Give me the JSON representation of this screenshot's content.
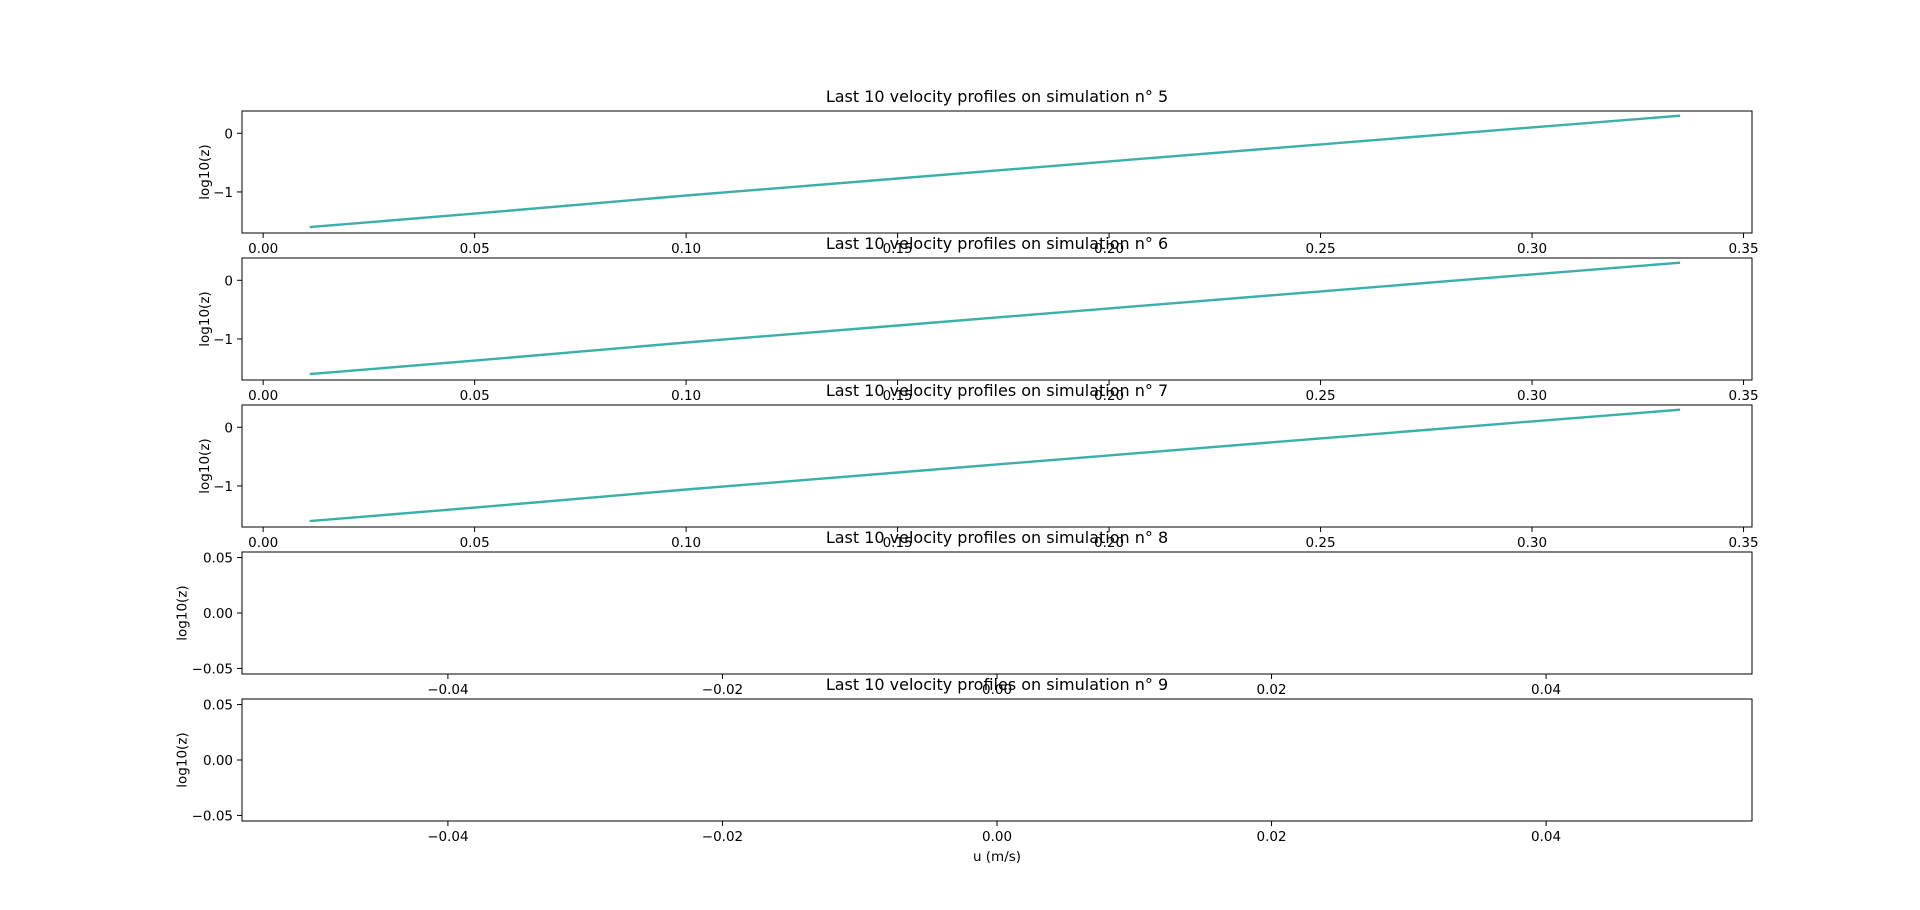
{
  "chart_data": [
    {
      "type": "line",
      "title": "Last 10 velocity profiles on simulation n° 5",
      "xlabel": "",
      "ylabel": "log10(z)",
      "xlim": [
        -0.005,
        0.352
      ],
      "ylim": [
        -1.7,
        0.38
      ],
      "xticks": [
        0.0,
        0.05,
        0.1,
        0.15,
        0.2,
        0.25,
        0.3,
        0.35
      ],
      "xtick_labels": [
        "0.00",
        "0.05",
        "0.10",
        "0.15",
        "0.20",
        "0.25",
        "0.30",
        "0.35"
      ],
      "yticks": [
        0,
        -1
      ],
      "ytick_labels": [
        "0",
        "−1"
      ],
      "color": "#3bb0a8",
      "series": [
        {
          "x": [
            0.011,
            0.05,
            0.1,
            0.15,
            0.2,
            0.25,
            0.3,
            0.335
          ],
          "y": [
            -1.6,
            -1.37,
            -1.06,
            -0.77,
            -0.48,
            -0.19,
            0.1,
            0.3
          ]
        }
      ]
    },
    {
      "type": "line",
      "title": "Last 10 velocity profiles on simulation n° 6",
      "xlabel": "",
      "ylabel": "log10(z)",
      "xlim": [
        -0.005,
        0.352
      ],
      "ylim": [
        -1.7,
        0.38
      ],
      "xticks": [
        0.0,
        0.05,
        0.1,
        0.15,
        0.2,
        0.25,
        0.3,
        0.35
      ],
      "xtick_labels": [
        "0.00",
        "0.05",
        "0.10",
        "0.15",
        "0.20",
        "0.25",
        "0.30",
        "0.35"
      ],
      "yticks": [
        0,
        -1
      ],
      "ytick_labels": [
        "0",
        "−1"
      ],
      "color": "#3bb0a8",
      "series": [
        {
          "x": [
            0.011,
            0.05,
            0.1,
            0.15,
            0.2,
            0.25,
            0.3,
            0.335
          ],
          "y": [
            -1.6,
            -1.37,
            -1.06,
            -0.77,
            -0.48,
            -0.19,
            0.1,
            0.3
          ]
        }
      ]
    },
    {
      "type": "line",
      "title": "Last 10 velocity profiles on simulation n° 7",
      "xlabel": "",
      "ylabel": "log10(z)",
      "xlim": [
        -0.005,
        0.352
      ],
      "ylim": [
        -1.7,
        0.38
      ],
      "xticks": [
        0.0,
        0.05,
        0.1,
        0.15,
        0.2,
        0.25,
        0.3,
        0.35
      ],
      "xtick_labels": [
        "0.00",
        "0.05",
        "0.10",
        "0.15",
        "0.20",
        "0.25",
        "0.30",
        "0.35"
      ],
      "yticks": [
        0,
        -1
      ],
      "ytick_labels": [
        "0",
        "−1"
      ],
      "color": "#3bb0a8",
      "series": [
        {
          "x": [
            0.011,
            0.05,
            0.1,
            0.15,
            0.2,
            0.25,
            0.3,
            0.335
          ],
          "y": [
            -1.6,
            -1.37,
            -1.06,
            -0.77,
            -0.48,
            -0.19,
            0.1,
            0.3
          ]
        }
      ]
    },
    {
      "type": "line",
      "title": "Last 10 velocity profiles on simulation n° 8",
      "xlabel": "",
      "ylabel": "log10(z)",
      "xlim": [
        -0.055,
        0.055
      ],
      "ylim": [
        -0.055,
        0.055
      ],
      "xticks": [
        -0.04,
        -0.02,
        0.0,
        0.02,
        0.04
      ],
      "xtick_labels": [
        "−0.04",
        "−0.02",
        "0.00",
        "0.02",
        "0.04"
      ],
      "yticks": [
        0.05,
        0.0,
        -0.05
      ],
      "ytick_labels": [
        "0.05",
        "0.00",
        "−0.05"
      ],
      "color": "#3bb0a8",
      "series": []
    },
    {
      "type": "line",
      "title": "Last 10 velocity profiles on simulation n° 9",
      "xlabel": "u (m/s)",
      "ylabel": "log10(z)",
      "xlim": [
        -0.055,
        0.055
      ],
      "ylim": [
        -0.055,
        0.055
      ],
      "xticks": [
        -0.04,
        -0.02,
        0.0,
        0.02,
        0.04
      ],
      "xtick_labels": [
        "−0.04",
        "−0.02",
        "0.00",
        "0.02",
        "0.04"
      ],
      "yticks": [
        0.05,
        0.0,
        -0.05
      ],
      "ytick_labels": [
        "0.05",
        "0.00",
        "−0.05"
      ],
      "color": "#3bb0a8",
      "series": []
    }
  ]
}
